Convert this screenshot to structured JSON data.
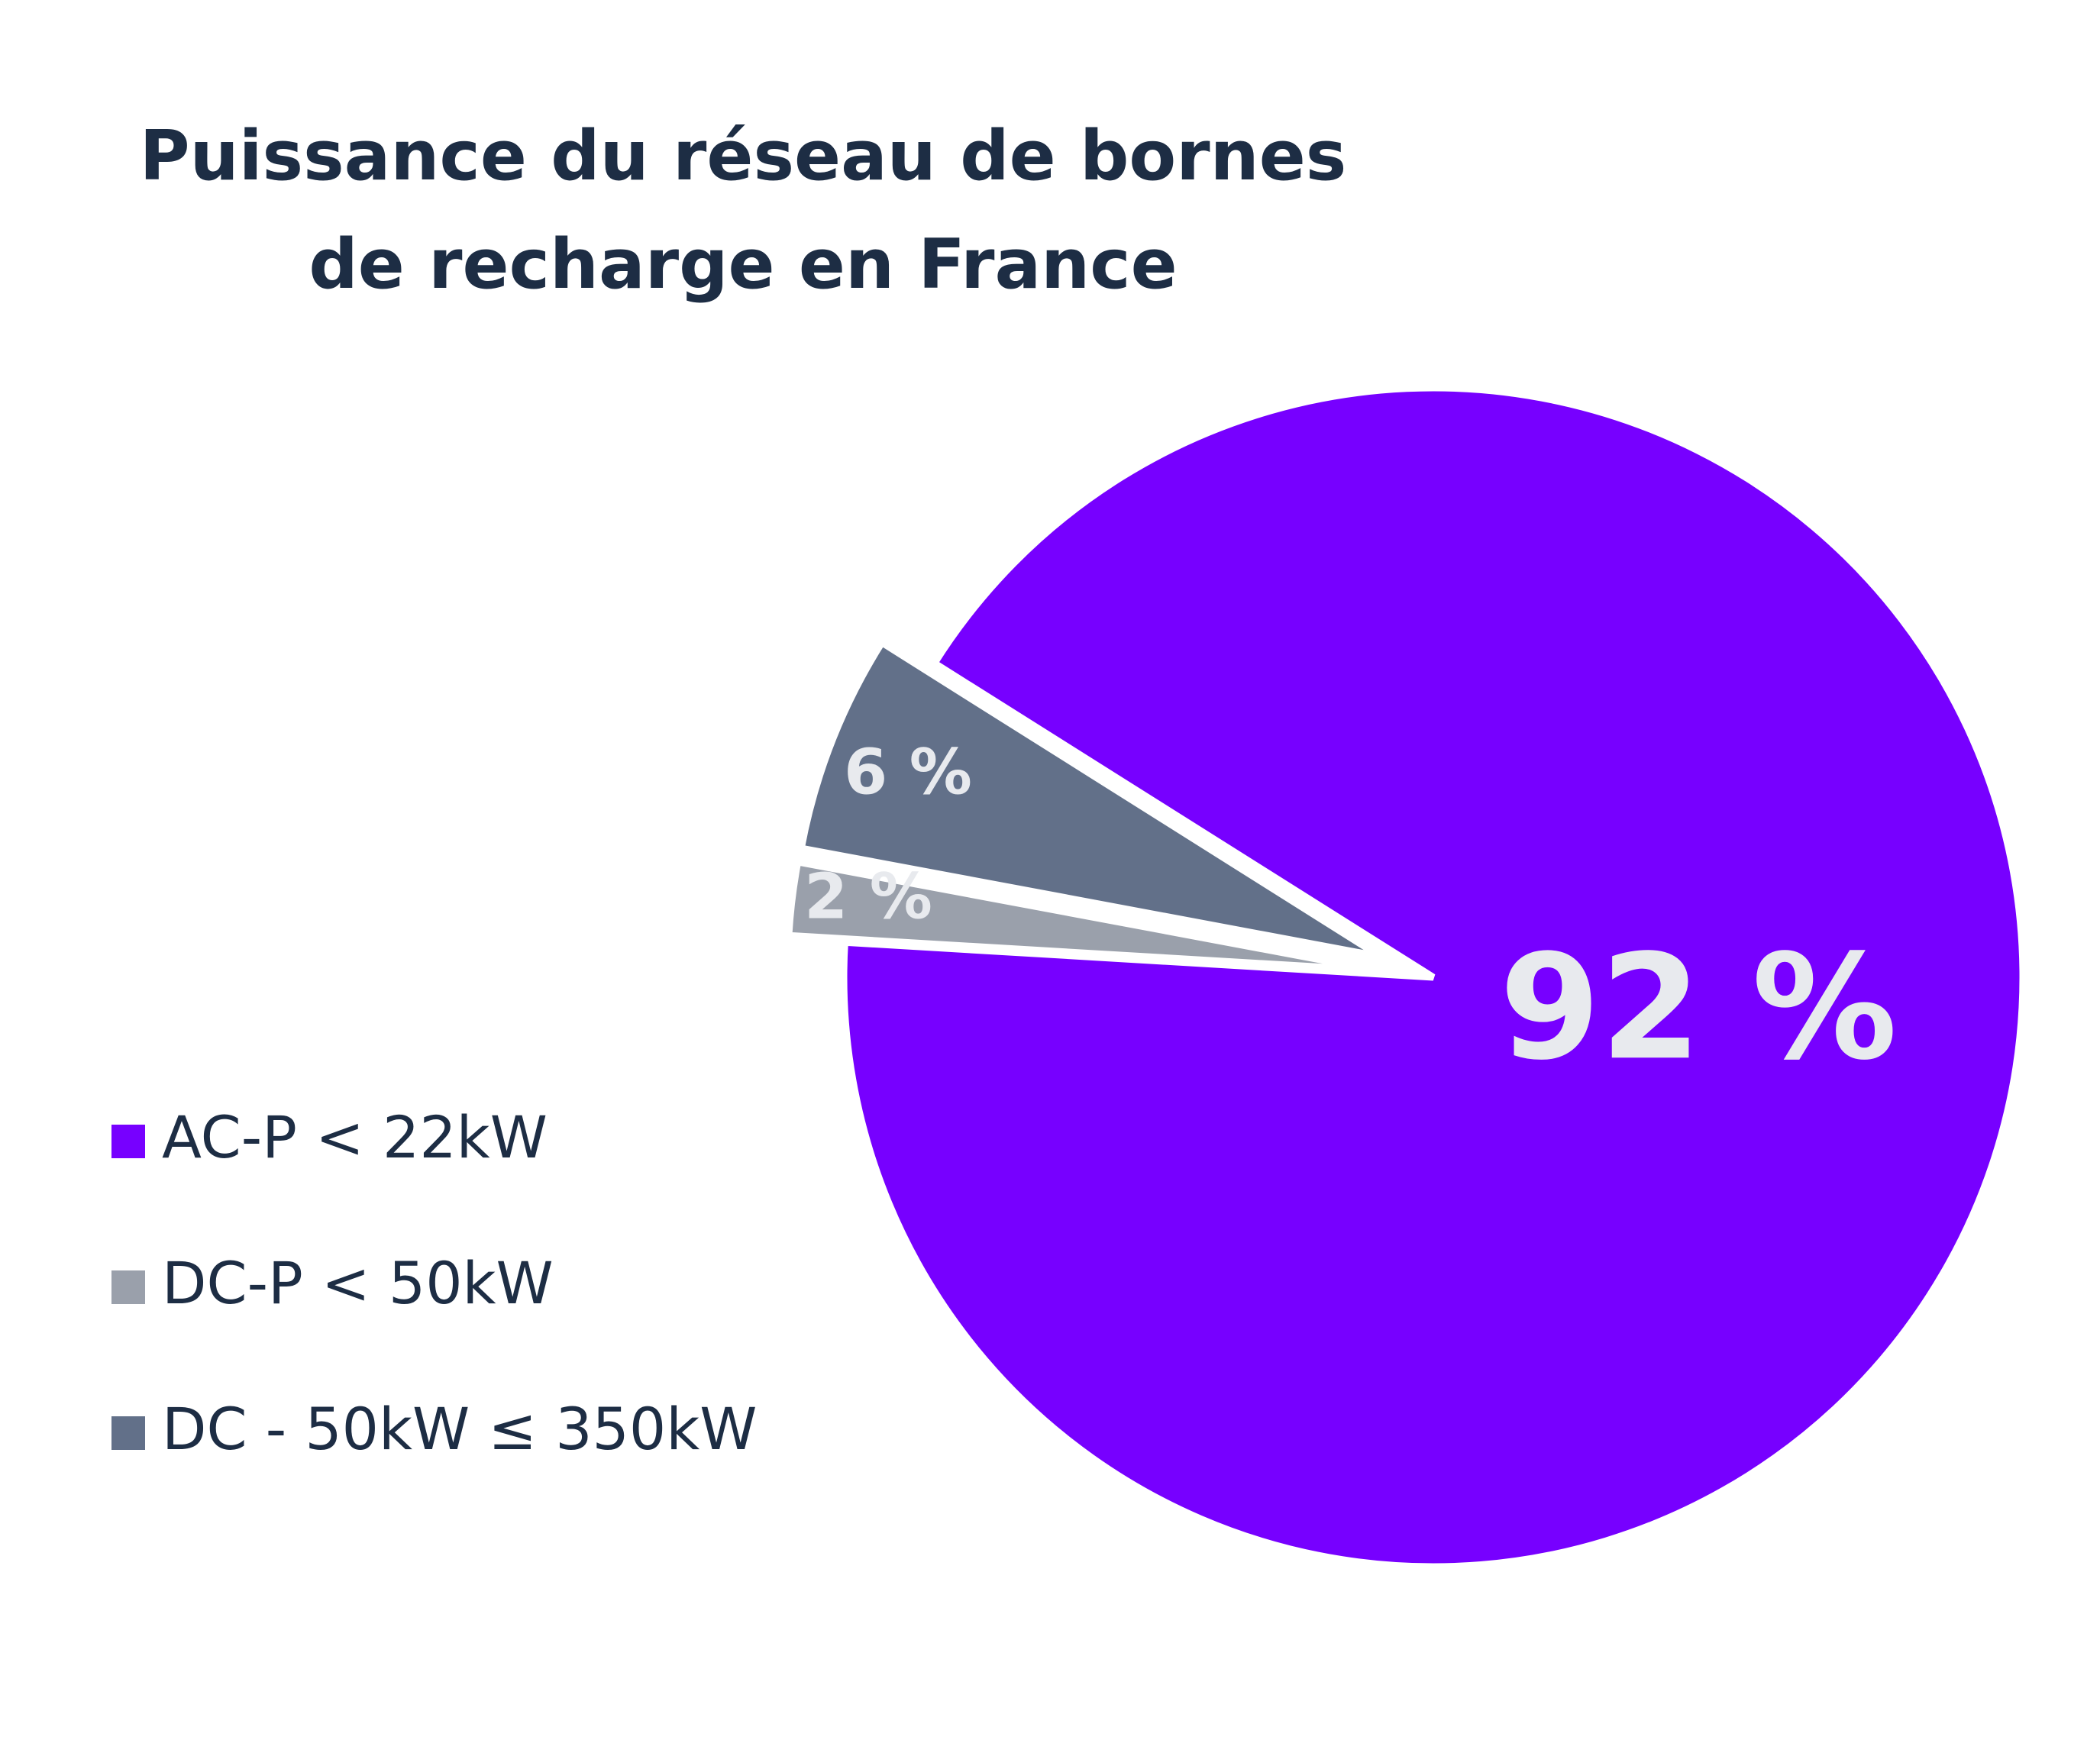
{
  "chart_data": {
    "type": "pie",
    "title": [
      "Puissance du réseau de bornes",
      "de recharge en France"
    ],
    "categories": [
      "AC-P < 22kW",
      "DC-P < 50kW",
      "DC - 50kW ≤ 350kW"
    ],
    "values": [
      92,
      2,
      6
    ],
    "value_labels": [
      "92 %",
      "2 %",
      "6 %"
    ],
    "colors": [
      "#7700ff",
      "#9aa0ab",
      "#627089"
    ]
  }
}
